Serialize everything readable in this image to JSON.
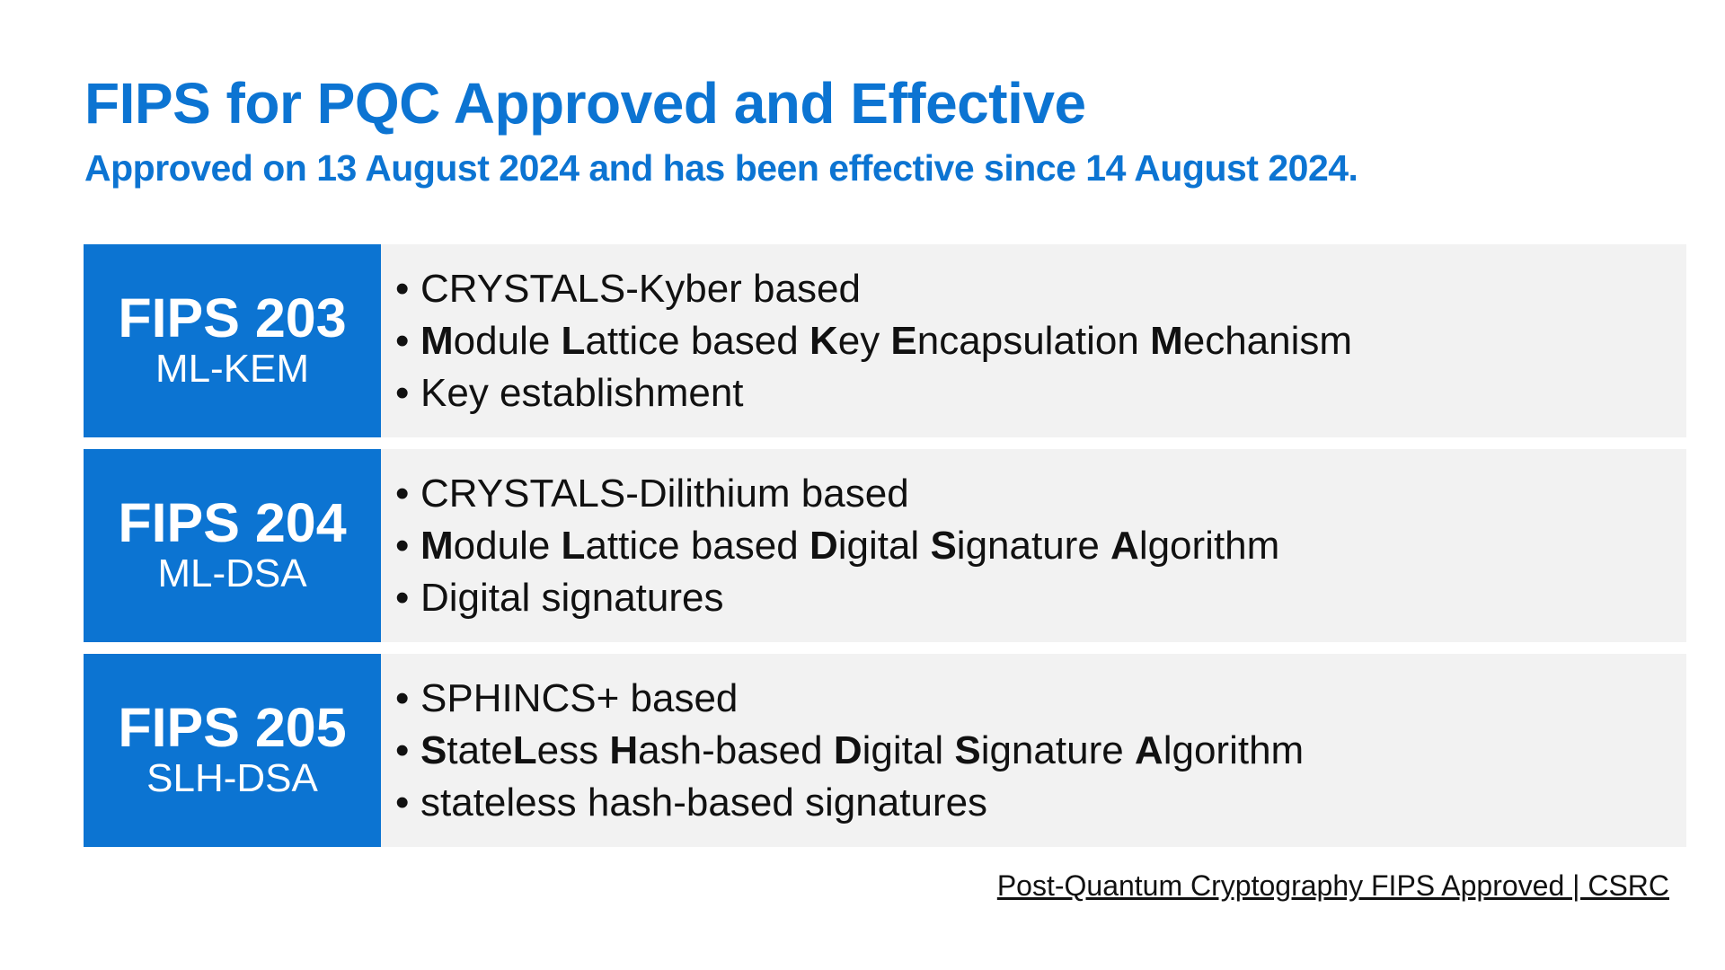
{
  "title": "FIPS for PQC Approved and Effective",
  "subtitle": "Approved on 13 August 2024 and has been effective since 14 August 2024.",
  "colors": {
    "accent": "#0c74d2",
    "panel": "#f2f2f2",
    "text": "#111111"
  },
  "rows": [
    {
      "fips": "FIPS 203",
      "algo": "ML-KEM",
      "bullets": [
        {
          "segments": [
            {
              "text": "CRYSTALS-Kyber based",
              "bold": false
            }
          ]
        },
        {
          "segments": [
            {
              "text": "M",
              "bold": true
            },
            {
              "text": "odule ",
              "bold": false
            },
            {
              "text": "L",
              "bold": true
            },
            {
              "text": "attice based ",
              "bold": false
            },
            {
              "text": "K",
              "bold": true
            },
            {
              "text": "ey ",
              "bold": false
            },
            {
              "text": "E",
              "bold": true
            },
            {
              "text": "ncapsulation ",
              "bold": false
            },
            {
              "text": "M",
              "bold": true
            },
            {
              "text": "echanism",
              "bold": false
            }
          ]
        },
        {
          "segments": [
            {
              "text": "Key establishment",
              "bold": false
            }
          ]
        }
      ]
    },
    {
      "fips": "FIPS 204",
      "algo": "ML-DSA",
      "bullets": [
        {
          "segments": [
            {
              "text": "CRYSTALS-Dilithium based",
              "bold": false
            }
          ]
        },
        {
          "segments": [
            {
              "text": "M",
              "bold": true
            },
            {
              "text": "odule ",
              "bold": false
            },
            {
              "text": "L",
              "bold": true
            },
            {
              "text": "attice based ",
              "bold": false
            },
            {
              "text": "D",
              "bold": true
            },
            {
              "text": "igital ",
              "bold": false
            },
            {
              "text": "S",
              "bold": true
            },
            {
              "text": "ignature ",
              "bold": false
            },
            {
              "text": "A",
              "bold": true
            },
            {
              "text": "lgorithm",
              "bold": false
            }
          ]
        },
        {
          "segments": [
            {
              "text": "Digital signatures",
              "bold": false
            }
          ]
        }
      ]
    },
    {
      "fips": "FIPS 205",
      "algo": "SLH-DSA",
      "bullets": [
        {
          "segments": [
            {
              "text": "SPHINCS+ based",
              "bold": false
            }
          ]
        },
        {
          "segments": [
            {
              "text": "S",
              "bold": true
            },
            {
              "text": "tate",
              "bold": false
            },
            {
              "text": "L",
              "bold": true
            },
            {
              "text": "ess ",
              "bold": false
            },
            {
              "text": "H",
              "bold": true
            },
            {
              "text": "ash-based ",
              "bold": false
            },
            {
              "text": "D",
              "bold": true
            },
            {
              "text": "igital ",
              "bold": false
            },
            {
              "text": "S",
              "bold": true
            },
            {
              "text": "ignature ",
              "bold": false
            },
            {
              "text": "A",
              "bold": true
            },
            {
              "text": "lgorithm",
              "bold": false
            }
          ]
        },
        {
          "segments": [
            {
              "text": "stateless hash-based signatures",
              "bold": false
            }
          ]
        }
      ]
    }
  ],
  "source_link": "Post-Quantum Cryptography FIPS Approved | CSRC"
}
